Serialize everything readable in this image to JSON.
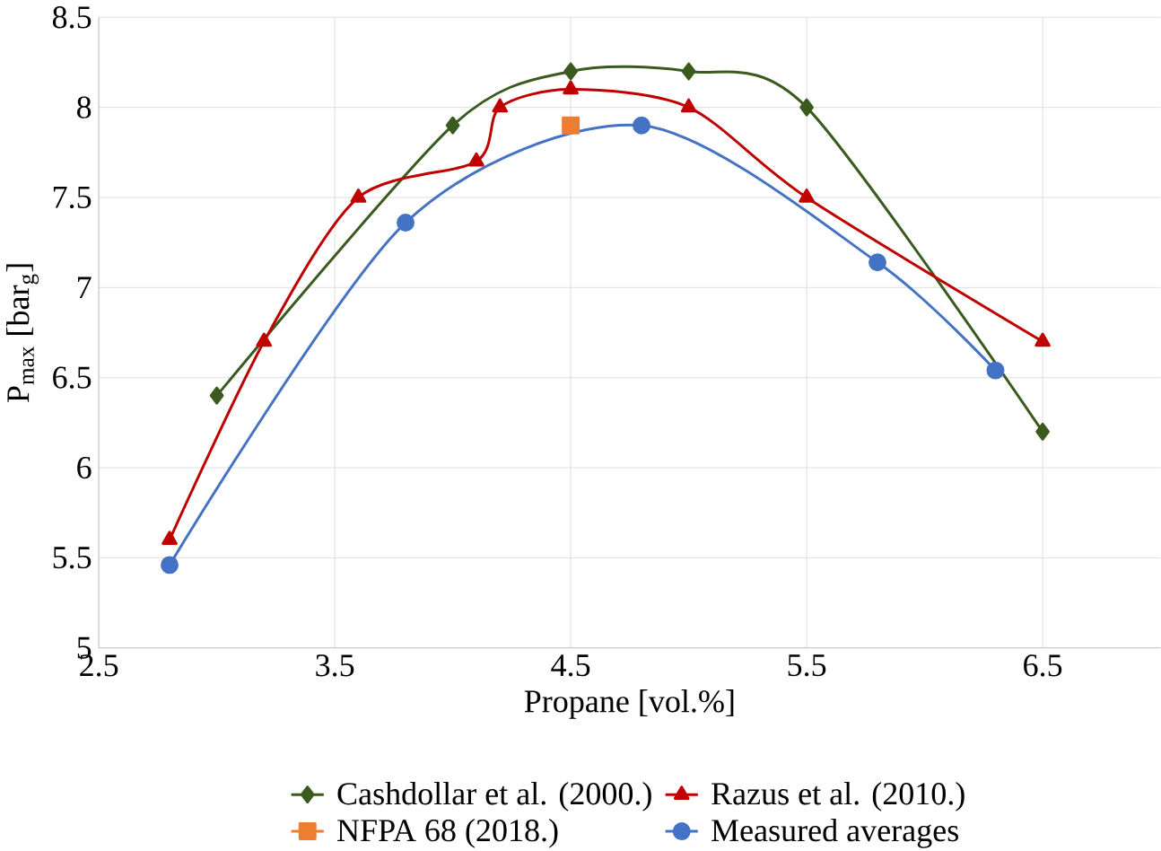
{
  "chart_data": {
    "type": "line",
    "xlabel": "Propane  [vol.%]",
    "ylabel": "P$_{max}$ [bar$_{g}$]",
    "xlim": [
      2.5,
      7.0
    ],
    "xticks": [
      2.5,
      3.5,
      4.5,
      5.5,
      6.5
    ],
    "ylim": [
      5,
      8.5
    ],
    "yticks": [
      5,
      5.5,
      6,
      6.5,
      7,
      7.5,
      8,
      8.5
    ],
    "grid": true,
    "legend": "bottom",
    "series": [
      {
        "name": "Cashdollar et al. (2000.)",
        "color": "#3a5a1e",
        "marker": "diamond",
        "x": [
          3.0,
          4.0,
          4.5,
          5.0,
          5.5,
          6.5
        ],
        "values": [
          6.4,
          7.9,
          8.2,
          8.2,
          8.0,
          6.2
        ]
      },
      {
        "name": "Razus et al. (2010.)",
        "color": "#c00000",
        "marker": "triangle",
        "x": [
          2.8,
          3.2,
          3.6,
          4.1,
          4.2,
          4.5,
          5.0,
          5.5,
          6.5
        ],
        "values": [
          5.6,
          6.7,
          7.5,
          7.7,
          8.0,
          8.1,
          8.0,
          7.5,
          6.7
        ]
      },
      {
        "name": "NFPA 68 (2018.)",
        "color": "#ed7d31",
        "marker": "square",
        "x": [
          4.5
        ],
        "values": [
          7.9
        ]
      },
      {
        "name": "Measured averages",
        "color": "#4472c4",
        "marker": "circle",
        "x": [
          2.8,
          3.8,
          4.8,
          5.8,
          6.3
        ],
        "values": [
          5.46,
          7.36,
          7.9,
          7.14,
          6.54
        ]
      }
    ]
  }
}
